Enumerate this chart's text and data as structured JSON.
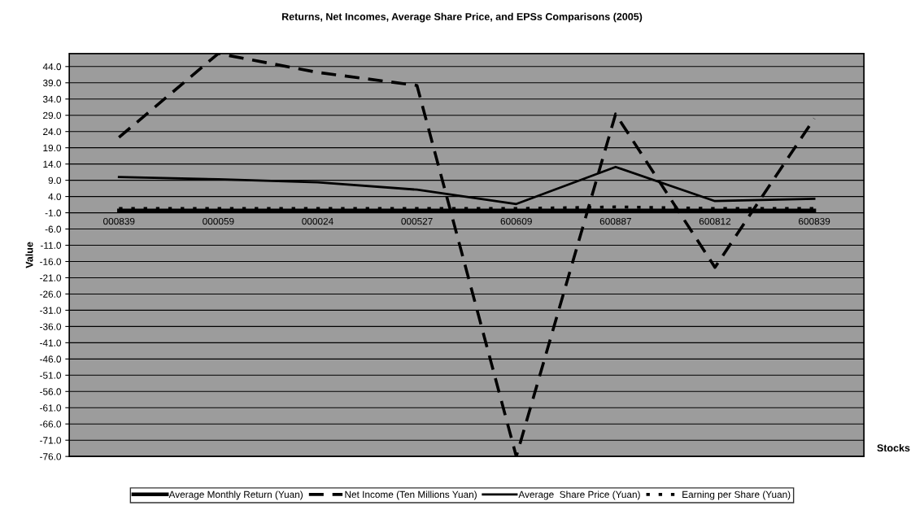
{
  "chart_data": {
    "type": "line",
    "title": "Returns, Net Incomes, Average Share Price, and EPSs Comparisons (2005)",
    "xlabel": "Stocks",
    "ylabel": "Value",
    "categories": [
      "000839",
      "000059",
      "000024",
      "000527",
      "600609",
      "600887",
      "600812",
      "600839"
    ],
    "series": [
      {
        "name": "Average Monthly Return (Yuan)",
        "color": "#000000",
        "line_style": "solid",
        "values": [
          -0.3,
          -0.3,
          -0.3,
          -0.3,
          -0.3,
          -0.3,
          -0.3,
          -0.3
        ]
      },
      {
        "name": "Net Income (Ten Millions Yuan)",
        "color": "#000000",
        "line_style": "dashed",
        "values": [
          22.2,
          48,
          42.2,
          38.2,
          -76,
          29.4,
          -17.8,
          28
        ]
      },
      {
        "name": "Average  Share Price (Yuan)",
        "color": "#000000",
        "line_style": "solid",
        "values": [
          10,
          9.3,
          8.4,
          6.1,
          1.7,
          13.1,
          2.6,
          3.3
        ]
      },
      {
        "name": "Earning per Share (Yuan)",
        "color": "#000000",
        "line_style": "dotted",
        "values": [
          0.3,
          0.3,
          0.3,
          0.3,
          0.3,
          0.8,
          0.3,
          0.3
        ]
      }
    ],
    "ylim": [
      -76,
      48
    ],
    "yticks": [
      {
        "value": 44,
        "label": "44.0"
      },
      {
        "value": 39,
        "label": "39.0"
      },
      {
        "value": 34,
        "label": "34.0"
      },
      {
        "value": 29,
        "label": "29.0"
      },
      {
        "value": 24,
        "label": "24.0"
      },
      {
        "value": 19,
        "label": "19.0"
      },
      {
        "value": 14,
        "label": "14.0"
      },
      {
        "value": 9,
        "label": "9.0"
      },
      {
        "value": 4,
        "label": "4.0"
      },
      {
        "value": -1,
        "label": "-1.0"
      },
      {
        "value": -6,
        "label": "-6.0"
      },
      {
        "value": -11,
        "label": "-11.0"
      },
      {
        "value": -16,
        "label": "-16.0"
      },
      {
        "value": -21,
        "label": "-21.0"
      },
      {
        "value": -26,
        "label": "-26.0"
      },
      {
        "value": -31,
        "label": "-31.0"
      },
      {
        "value": -36,
        "label": "-36.0"
      },
      {
        "value": -41,
        "label": "-41.0"
      },
      {
        "value": -46,
        "label": "-46.0"
      },
      {
        "value": -51,
        "label": "-51.0"
      },
      {
        "value": -56,
        "label": "-56.0"
      },
      {
        "value": -61,
        "label": "-61.0"
      },
      {
        "value": -66,
        "label": "-66.0"
      },
      {
        "value": -71,
        "label": "-71.0"
      },
      {
        "value": -76,
        "label": "-76.0"
      }
    ],
    "grid": "y",
    "legend": "bottom",
    "marker": "none"
  }
}
